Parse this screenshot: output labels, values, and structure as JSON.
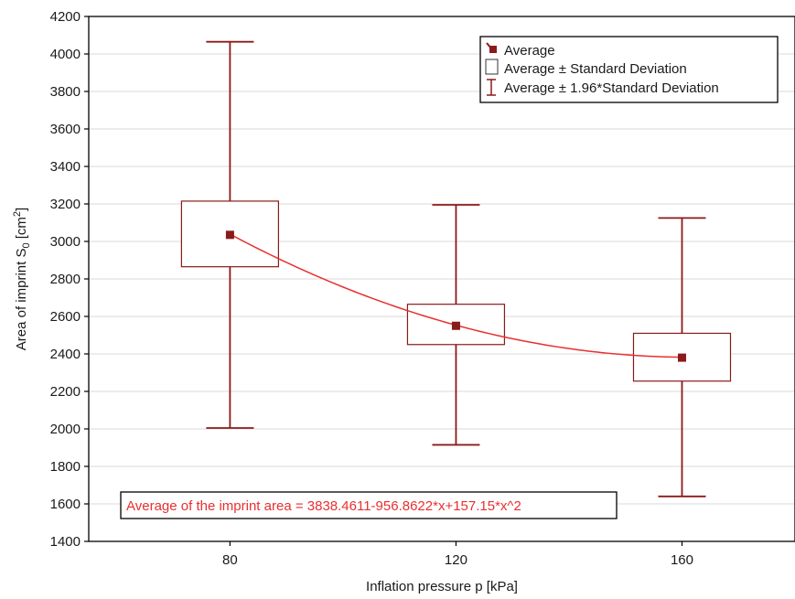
{
  "chart_data": {
    "type": "box",
    "xlabel": "Inflation pressure p [kPa]",
    "ylabel": {
      "main": "Area of imprint S",
      "sub": "0",
      "unit_open": " [cm",
      "sup": "2",
      "unit_close": "]"
    },
    "categories": [
      "80",
      "120",
      "160"
    ],
    "x_positions": [
      80,
      120,
      160
    ],
    "ylim": [
      1400,
      4200
    ],
    "yticks": [
      1400,
      1600,
      1800,
      2000,
      2200,
      2400,
      2600,
      2800,
      3000,
      3200,
      3400,
      3600,
      3800,
      4000,
      4200
    ],
    "grid": "horizontal",
    "series": [
      {
        "name": "Average",
        "values": [
          3035,
          2550,
          2380
        ]
      },
      {
        "name": "Average ± Standard Deviation",
        "low": [
          2865,
          2450,
          2255
        ],
        "high": [
          3215,
          2665,
          2510
        ]
      },
      {
        "name": "Average ± 1.96*Standard Deviation",
        "low": [
          2005,
          1915,
          1640
        ],
        "high": [
          4065,
          3195,
          3125
        ]
      }
    ],
    "fit": {
      "label": "Average of the imprint area = 3838.4611-956.8622*x+157.15*x^2",
      "coefficients": [
        3838.4611,
        -956.8622,
        157.15
      ],
      "x_mapping": "category index 1..3"
    },
    "legend": {
      "position": "top-right",
      "items": [
        "Average",
        "Average ± Standard Deviation",
        "Average ± 1.96*Standard Deviation"
      ]
    },
    "colors": {
      "series": "#8b1a1a",
      "fit": "#e83030",
      "grid": "#d9d9d9",
      "axis": "#000000"
    }
  }
}
